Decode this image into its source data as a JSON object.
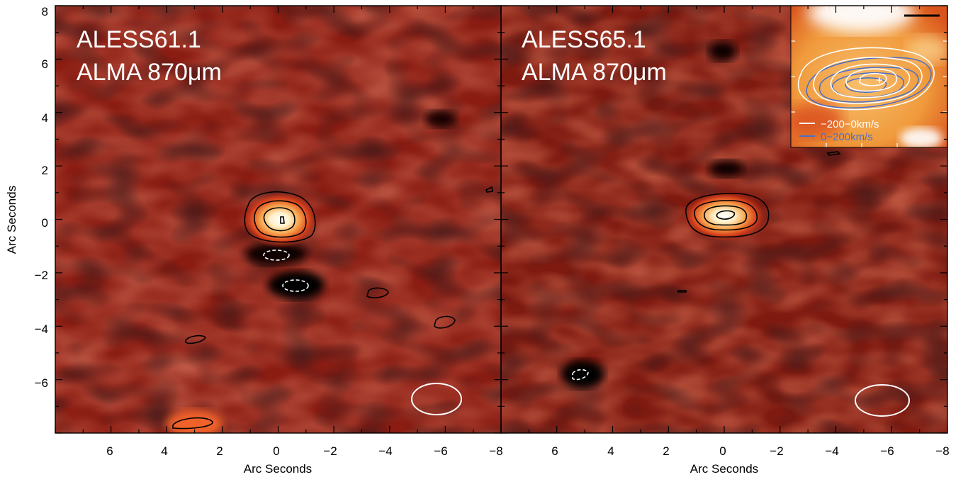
{
  "figure": {
    "panels": [
      {
        "id": "left",
        "label_line1": "ALESS61.1",
        "label_line2": "ALMA 870μm",
        "x_ticks": [
          "6",
          "4",
          "2",
          "0",
          "−2",
          "−4",
          "−6"
        ],
        "y_ticks": [
          "8",
          "6",
          "4",
          "2",
          "0",
          "−2",
          "−4",
          "−6"
        ],
        "x_title": "Arc Seconds",
        "y_title": "Arc Seconds"
      },
      {
        "id": "right",
        "label_line1": "ALESS65.1",
        "label_line2": "ALMA 870μm",
        "x_ticks": [
          "6",
          "4",
          "2",
          "0",
          "−2",
          "−4",
          "−6",
          "−8"
        ],
        "x_title": "Arc Seconds",
        "x_corner_label": "−8"
      }
    ],
    "inset": {
      "legend": [
        {
          "label": "−200−0km/s",
          "color": "#ffffff"
        },
        {
          "label": "0−200km/s",
          "color": "#4a6fc8"
        }
      ]
    },
    "colors": {
      "map_dark": "#1a0604",
      "map_mid": "#8c1c12",
      "map_bright": "#d43a1a",
      "contour_pos": "#000000",
      "contour_neg": "#ffffff",
      "beam": "#ffffff"
    }
  }
}
